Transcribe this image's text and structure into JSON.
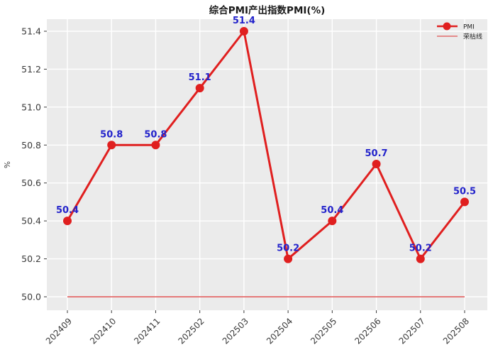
{
  "title": "综合PMI产出指数PMI(%)",
  "colors": {
    "pmi_line": "#e01f1f",
    "breakeven_line": "#e05252",
    "value_label": "#2323cb",
    "tick_label": "#3a3a3a",
    "title_text": "#1a1a1a",
    "plot_background": "#ebebeb",
    "gridline": "#ffffff"
  },
  "legend": {
    "position": "top-right",
    "entries": [
      {
        "label": "PMI",
        "symbol": "line-with-circle-marker"
      },
      {
        "label": "荣枯线",
        "symbol": "thin-line"
      }
    ]
  },
  "chart_data": {
    "type": "line",
    "title": "综合PMI产出指数PMI(%)",
    "xlabel": "",
    "ylabel": "%",
    "categories": [
      "202409",
      "202410",
      "202411",
      "202502",
      "202503",
      "202504",
      "202505",
      "202506",
      "202507",
      "202508"
    ],
    "series": [
      {
        "name": "PMI",
        "type": "line",
        "values": [
          50.4,
          50.8,
          50.8,
          51.1,
          51.4,
          50.2,
          50.4,
          50.7,
          50.2,
          50.5
        ]
      },
      {
        "name": "荣枯线",
        "type": "hline",
        "value": 50.0
      }
    ],
    "point_labels": [
      "50.4",
      "50.8",
      "50.8",
      "51.1",
      "51.4",
      "50.2",
      "50.4",
      "50.7",
      "50.2",
      "50.5"
    ],
    "ytick_labels": [
      "50.0",
      "50.2",
      "50.4",
      "50.6",
      "50.8",
      "51.0",
      "51.2",
      "51.4"
    ],
    "ylim": [
      49.93,
      51.46
    ],
    "grid": true,
    "xtick_rotation_deg": 45,
    "legend_position": "top-right"
  }
}
